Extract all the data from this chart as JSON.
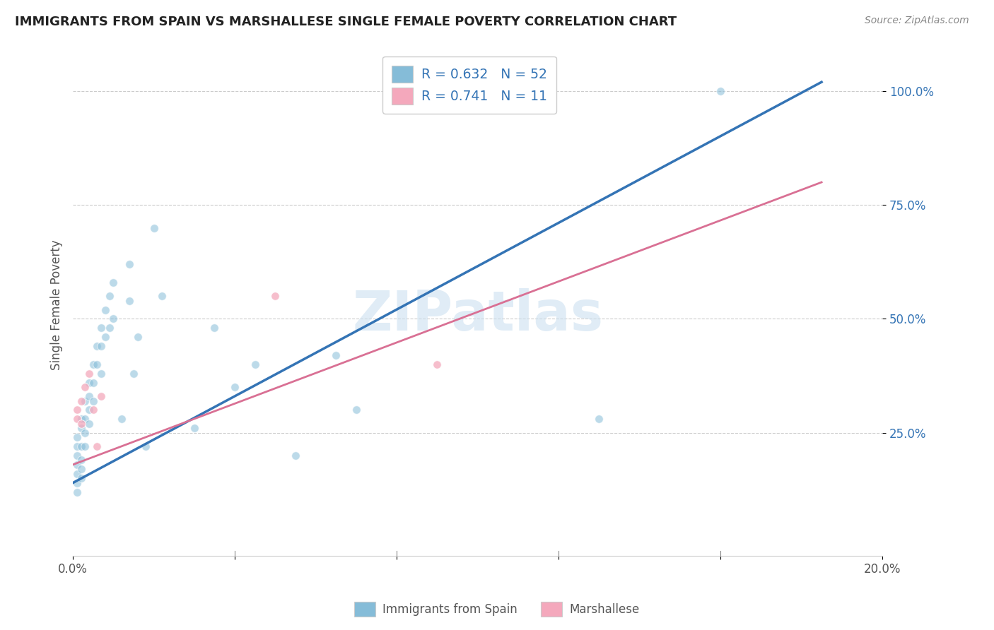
{
  "title": "IMMIGRANTS FROM SPAIN VS MARSHALLESE SINGLE FEMALE POVERTY CORRELATION CHART",
  "source_text": "Source: ZipAtlas.com",
  "ylabel": "Single Female Poverty",
  "xlim": [
    0.0,
    0.2
  ],
  "ylim": [
    -0.02,
    1.08
  ],
  "blue_scatter": [
    [
      0.001,
      0.2
    ],
    [
      0.001,
      0.18
    ],
    [
      0.001,
      0.22
    ],
    [
      0.001,
      0.16
    ],
    [
      0.001,
      0.14
    ],
    [
      0.001,
      0.12
    ],
    [
      0.001,
      0.24
    ],
    [
      0.002,
      0.26
    ],
    [
      0.002,
      0.22
    ],
    [
      0.002,
      0.19
    ],
    [
      0.002,
      0.17
    ],
    [
      0.002,
      0.15
    ],
    [
      0.002,
      0.28
    ],
    [
      0.003,
      0.32
    ],
    [
      0.003,
      0.28
    ],
    [
      0.003,
      0.25
    ],
    [
      0.003,
      0.22
    ],
    [
      0.004,
      0.36
    ],
    [
      0.004,
      0.33
    ],
    [
      0.004,
      0.3
    ],
    [
      0.004,
      0.27
    ],
    [
      0.005,
      0.4
    ],
    [
      0.005,
      0.36
    ],
    [
      0.005,
      0.32
    ],
    [
      0.006,
      0.44
    ],
    [
      0.006,
      0.4
    ],
    [
      0.007,
      0.48
    ],
    [
      0.007,
      0.44
    ],
    [
      0.007,
      0.38
    ],
    [
      0.008,
      0.52
    ],
    [
      0.008,
      0.46
    ],
    [
      0.009,
      0.55
    ],
    [
      0.009,
      0.48
    ],
    [
      0.01,
      0.58
    ],
    [
      0.01,
      0.5
    ],
    [
      0.012,
      0.28
    ],
    [
      0.014,
      0.62
    ],
    [
      0.014,
      0.54
    ],
    [
      0.015,
      0.38
    ],
    [
      0.016,
      0.46
    ],
    [
      0.018,
      0.22
    ],
    [
      0.02,
      0.7
    ],
    [
      0.022,
      0.55
    ],
    [
      0.03,
      0.26
    ],
    [
      0.035,
      0.48
    ],
    [
      0.04,
      0.35
    ],
    [
      0.045,
      0.4
    ],
    [
      0.055,
      0.2
    ],
    [
      0.065,
      0.42
    ],
    [
      0.07,
      0.3
    ],
    [
      0.13,
      0.28
    ],
    [
      0.16,
      1.0
    ]
  ],
  "pink_scatter": [
    [
      0.001,
      0.3
    ],
    [
      0.001,
      0.28
    ],
    [
      0.002,
      0.32
    ],
    [
      0.002,
      0.27
    ],
    [
      0.003,
      0.35
    ],
    [
      0.004,
      0.38
    ],
    [
      0.005,
      0.3
    ],
    [
      0.006,
      0.22
    ],
    [
      0.007,
      0.33
    ],
    [
      0.05,
      0.55
    ],
    [
      0.09,
      0.4
    ]
  ],
  "blue_line_x": [
    0.0,
    0.185
  ],
  "blue_line_y": [
    0.14,
    1.02
  ],
  "pink_line_x": [
    0.0,
    0.185
  ],
  "pink_line_y": [
    0.18,
    0.8
  ],
  "blue_color": "#85bcd8",
  "pink_color": "#f4a8bc",
  "blue_line_color": "#3474b5",
  "pink_line_color": "#d97094",
  "pink_dash_color": "#d0b8c0",
  "watermark": "ZIPatlas",
  "grid_color": "#cccccc",
  "background_color": "#ffffff",
  "title_color": "#222222",
  "label_color": "#555555",
  "tick_color": "#3474b5"
}
